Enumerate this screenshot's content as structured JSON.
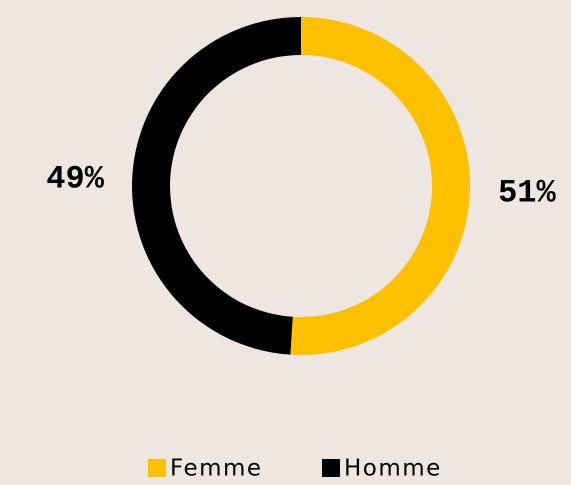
{
  "chart_data": {
    "type": "pie",
    "donut": true,
    "categories": [
      "Femme",
      "Homme"
    ],
    "values": [
      51,
      49
    ],
    "value_labels": [
      "51%",
      "49%"
    ],
    "colors": [
      "#ffc000",
      "#000000"
    ],
    "legend": "bottom"
  }
}
